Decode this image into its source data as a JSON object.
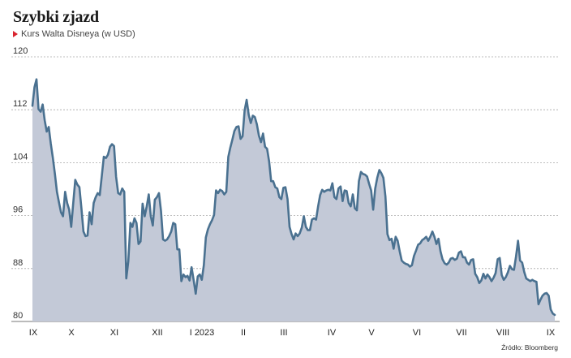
{
  "title": "Szybki zjazd",
  "subtitle": "Kurs Walta Disneya (w USD)",
  "source": "Źródło: Bloomberg",
  "colors": {
    "line": "#4a7190",
    "fill": "#c3c9d7",
    "marker": "#d9232e",
    "grid": "#a8a8a8"
  },
  "chart_data": {
    "type": "area",
    "title": "Szybki zjazd",
    "subtitle": "Kurs Walta Disneya (w USD)",
    "ylim": [
      80,
      120
    ],
    "yticks": [
      80,
      88,
      96,
      104,
      112,
      120
    ],
    "grid": true,
    "xticks": [
      "IX",
      "X",
      "XI",
      "XII",
      "I 2023",
      "II",
      "III",
      "IV",
      "V",
      "VI",
      "VII",
      "VIII",
      "IX"
    ],
    "series": [
      {
        "values": [
          112.6,
          115.4,
          116.6,
          112.1,
          111.7,
          112.8,
          110.4,
          108.7,
          109.4,
          106.9,
          104.7,
          102.3,
          99.6,
          98.0,
          96.5,
          95.9,
          99.6,
          97.9,
          96.9,
          94.3,
          97.9,
          101.4,
          100.7,
          100.3,
          97.1,
          93.6,
          92.9,
          93.0,
          96.5,
          94.7,
          97.9,
          98.8,
          99.4,
          99.1,
          102.0,
          104.9,
          104.7,
          105.2,
          106.4,
          106.8,
          106.5,
          101.9,
          99.4,
          99.2,
          100.1,
          99.6,
          86.5,
          89.1,
          94.9,
          94.3,
          95.6,
          94.9,
          91.7,
          92.1,
          97.8,
          95.9,
          97.4,
          99.2,
          95.9,
          94.5,
          98.4,
          98.8,
          99.4,
          96.7,
          92.4,
          92.2,
          92.4,
          92.9,
          93.6,
          94.9,
          94.7,
          90.9,
          90.9,
          86.1,
          87.1,
          86.7,
          86.9,
          86.2,
          88.2,
          86.3,
          84.2,
          86.8,
          87.1,
          86.3,
          88.5,
          92.7,
          93.9,
          94.7,
          95.3,
          96.1,
          99.8,
          99.4,
          99.9,
          99.7,
          99.2,
          99.6,
          104.9,
          106.3,
          107.5,
          108.8,
          109.4,
          109.5,
          107.6,
          108.0,
          111.9,
          113.5,
          111.2,
          110.0,
          111.1,
          110.9,
          109.8,
          108.1,
          107.1,
          108.4,
          106.4,
          106.1,
          104.2,
          101.2,
          101.2,
          100.3,
          100.1,
          98.8,
          98.5,
          100.2,
          100.3,
          98.5,
          94.3,
          93.2,
          92.4,
          93.3,
          92.9,
          93.3,
          94.2,
          95.9,
          94.3,
          93.8,
          93.8,
          95.4,
          95.6,
          95.4,
          97.4,
          99.1,
          99.9,
          99.6,
          99.8,
          99.9,
          99.8,
          100.9,
          98.8,
          98.5,
          100.1,
          100.4,
          98.2,
          99.8,
          99.7,
          97.9,
          97.4,
          99.2,
          97.1,
          96.8,
          101.2,
          102.6,
          102.3,
          102.2,
          101.9,
          100.8,
          99.8,
          96.9,
          100.1,
          101.7,
          102.9,
          102.4,
          101.7,
          98.9,
          93.2,
          92.3,
          92.5,
          91.0,
          92.8,
          92.2,
          90.6,
          89.2,
          88.9,
          88.7,
          88.6,
          88.3,
          88.5,
          89.9,
          90.7,
          91.6,
          91.8,
          92.3,
          92.5,
          92.8,
          92.2,
          92.8,
          93.6,
          92.8,
          91.7,
          92.5,
          90.6,
          89.4,
          88.8,
          88.6,
          88.9,
          89.5,
          89.6,
          89.3,
          89.5,
          90.4,
          90.6,
          89.7,
          89.7,
          88.9,
          88.6,
          89.3,
          89.4,
          87.2,
          86.7,
          85.8,
          86.2,
          87.2,
          86.5,
          87.1,
          86.7,
          86.1,
          86.6,
          87.3,
          89.4,
          89.6,
          87.0,
          86.3,
          86.7,
          87.4,
          88.4,
          87.9,
          87.8,
          89.8,
          92.2,
          89.2,
          88.9,
          87.5,
          86.5,
          86.3,
          86.1,
          86.3,
          86.1,
          86.0,
          82.6,
          83.3,
          83.9,
          84.2,
          84.3,
          83.9,
          81.8,
          81.2,
          81.0
        ]
      }
    ]
  }
}
